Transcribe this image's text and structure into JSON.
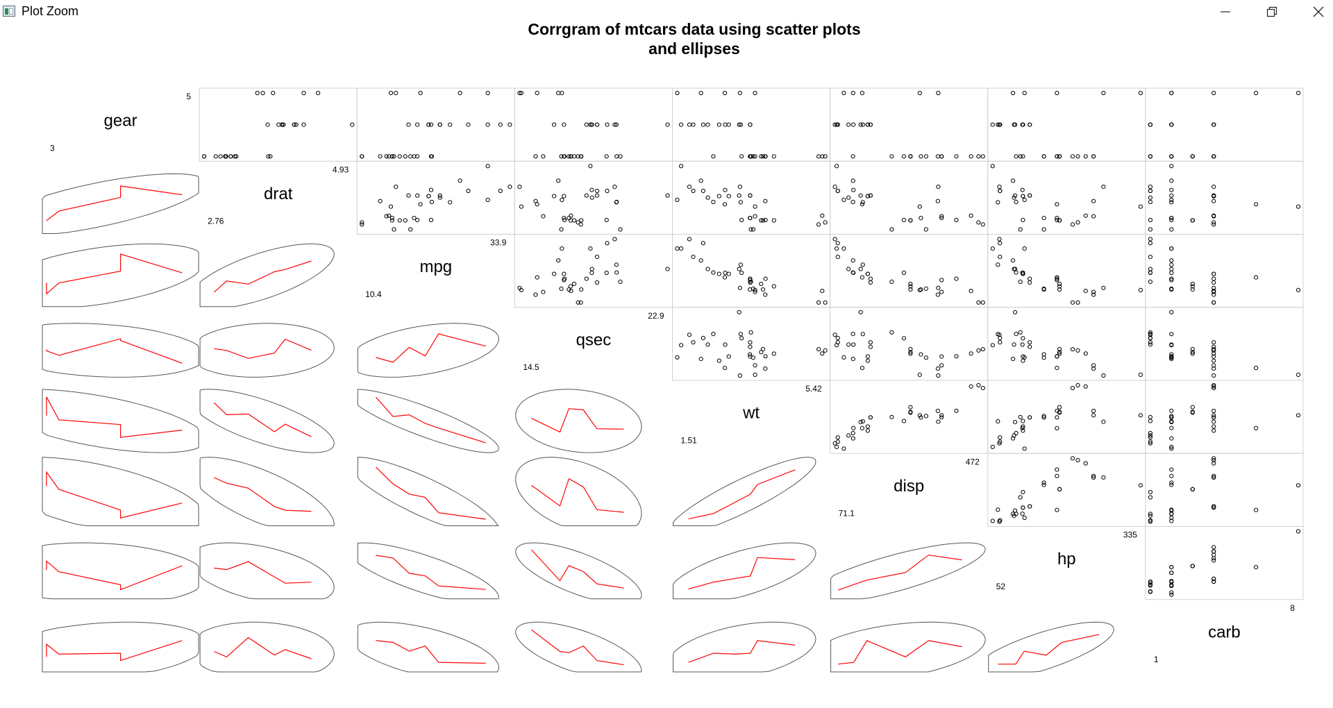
{
  "window": {
    "title": "Plot Zoom",
    "icon": "r-plot-window-icon",
    "controls": [
      "minimize-icon",
      "maximize-icon",
      "close-icon"
    ]
  },
  "chart_data": {
    "type": "scatter",
    "title_lines": [
      "Corrgram of mtcars data using scatter plots",
      "and ellipses"
    ],
    "variables": [
      "gear",
      "drat",
      "mpg",
      "qsec",
      "wt",
      "disp",
      "hp",
      "carb"
    ],
    "ranges": {
      "gear": [
        "3",
        "5"
      ],
      "drat": [
        "2.76",
        "4.93"
      ],
      "mpg": [
        "10.4",
        "33.9"
      ],
      "qsec": [
        "14.5",
        "22.9"
      ],
      "wt": [
        "1.51",
        "5.42"
      ],
      "disp": [
        "71.1",
        "472"
      ],
      "hp": [
        "52",
        "335"
      ],
      "carb": [
        "1",
        "8"
      ]
    },
    "upper_panel": "points",
    "lower_panel": "ellipse with red smoothed line",
    "line_color": "#ff0000",
    "ellipse_color": "#555555",
    "point_color": "#000000",
    "observations": {
      "mpg": [
        21,
        21,
        22.8,
        21.4,
        18.7,
        18.1,
        14.3,
        24.4,
        22.8,
        19.2,
        17.8,
        16.4,
        17.3,
        15.2,
        10.4,
        10.4,
        14.7,
        32.4,
        30.4,
        33.9,
        21.5,
        15.5,
        15.2,
        13.3,
        19.2,
        27.3,
        26,
        30.4,
        15.8,
        19.7,
        15,
        21.4
      ],
      "disp": [
        160,
        160,
        108,
        258,
        360,
        225,
        360,
        146.7,
        140.8,
        167.6,
        167.6,
        275.8,
        275.8,
        275.8,
        472,
        460,
        440,
        78.7,
        75.7,
        71.1,
        120.1,
        318,
        304,
        350,
        400,
        79,
        120.3,
        95.1,
        351,
        145,
        301,
        121
      ],
      "hp": [
        110,
        110,
        93,
        110,
        175,
        105,
        245,
        62,
        95,
        123,
        123,
        180,
        180,
        180,
        205,
        215,
        230,
        66,
        52,
        65,
        97,
        150,
        150,
        245,
        175,
        66,
        91,
        113,
        264,
        175,
        335,
        109
      ],
      "drat": [
        3.9,
        3.9,
        3.85,
        3.08,
        3.15,
        2.76,
        3.21,
        3.69,
        3.92,
        3.92,
        3.92,
        3.07,
        3.07,
        3.07,
        2.93,
        3,
        3.23,
        4.08,
        4.93,
        4.22,
        3.7,
        2.76,
        3.15,
        3.73,
        3.08,
        4.08,
        4.43,
        3.77,
        4.22,
        3.62,
        3.54,
        4.11
      ],
      "wt": [
        2.62,
        2.875,
        2.32,
        3.215,
        3.44,
        3.46,
        3.57,
        3.19,
        3.15,
        3.44,
        3.44,
        4.07,
        3.73,
        3.78,
        5.25,
        5.424,
        5.345,
        2.2,
        1.615,
        1.835,
        2.465,
        3.52,
        3.435,
        3.84,
        3.845,
        1.935,
        2.14,
        1.513,
        3.17,
        2.77,
        3.57,
        2.78
      ],
      "qsec": [
        16.46,
        17.02,
        18.61,
        19.44,
        17.02,
        20.22,
        15.84,
        20,
        22.9,
        18.3,
        18.9,
        17.4,
        17.6,
        18,
        17.98,
        17.82,
        17.42,
        19.47,
        18.52,
        19.9,
        20.01,
        16.87,
        17.3,
        15.41,
        17.05,
        18.9,
        16.7,
        16.9,
        14.5,
        15.5,
        14.6,
        18.6
      ],
      "gear": [
        4,
        4,
        4,
        3,
        3,
        3,
        3,
        4,
        4,
        4,
        4,
        3,
        3,
        3,
        3,
        3,
        3,
        4,
        4,
        4,
        3,
        3,
        3,
        3,
        3,
        4,
        5,
        5,
        5,
        5,
        5,
        4
      ],
      "carb": [
        4,
        4,
        1,
        1,
        2,
        1,
        4,
        2,
        2,
        4,
        4,
        3,
        3,
        3,
        4,
        4,
        4,
        1,
        2,
        1,
        1,
        2,
        2,
        4,
        2,
        1,
        2,
        2,
        4,
        6,
        8,
        2
      ]
    }
  }
}
